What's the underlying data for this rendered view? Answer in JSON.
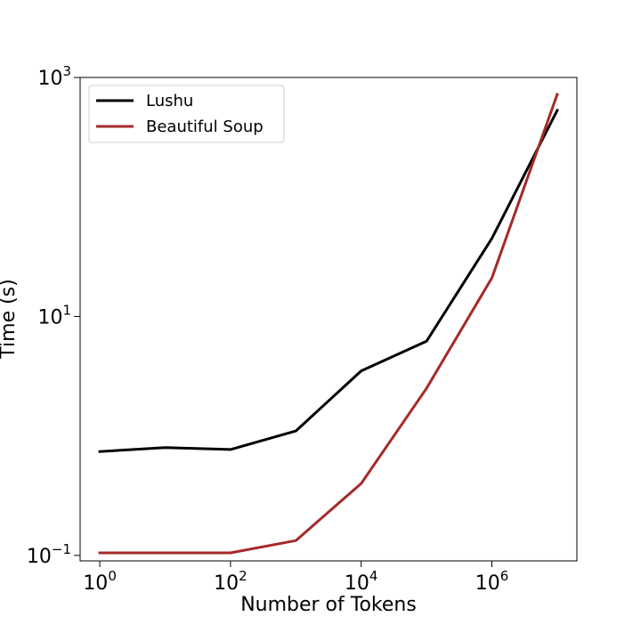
{
  "chart_data": {
    "type": "line",
    "xlabel": "Number of Tokens",
    "ylabel": "Time (s)",
    "xscale": "log",
    "yscale": "log",
    "xlim": [
      0.5,
      20000000
    ],
    "ylim": [
      0.09,
      1000
    ],
    "grid": false,
    "legend_position": "top-left",
    "x": [
      1,
      10,
      100,
      1000,
      10000,
      100000,
      1000000,
      10000000
    ],
    "x_ticks": [
      {
        "value": 1,
        "base": "10",
        "exp": "0"
      },
      {
        "value": 100,
        "base": "10",
        "exp": "2"
      },
      {
        "value": 10000,
        "base": "10",
        "exp": "4"
      },
      {
        "value": 1000000,
        "base": "10",
        "exp": "6"
      }
    ],
    "y_ticks": [
      {
        "value": 0.1,
        "base": "10",
        "exp": "−1"
      },
      {
        "value": 10,
        "base": "10",
        "exp": "1"
      },
      {
        "value": 1000,
        "base": "10",
        "exp": "3"
      }
    ],
    "series": [
      {
        "name": "Lushu",
        "color": "#000000",
        "values": [
          0.74,
          0.8,
          0.77,
          1.1,
          3.5,
          6.2,
          45,
          530
        ]
      },
      {
        "name": "Beautiful Soup",
        "color": "#a52a2a",
        "values": [
          0.105,
          0.105,
          0.105,
          0.133,
          0.4,
          2.5,
          21,
          720
        ]
      }
    ]
  }
}
